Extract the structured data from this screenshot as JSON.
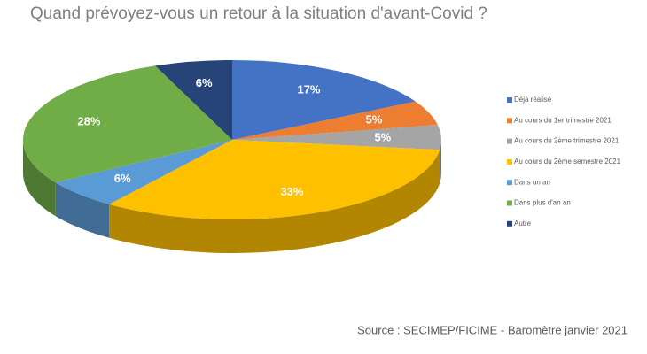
{
  "chart_data": {
    "type": "pie3d",
    "title": "Quand prévoyez-vous un retour à la situation d'avant-Covid ?",
    "source": "Source : SECIMEP/FICIME - Baromètre janvier 2021",
    "categories": [
      "Déjà réalisé",
      "Au cours du 1er trimestre 2021",
      "Au cours du 2ème trimestre 2021",
      "Au cours du 2ème semestre 2021",
      "Dans un an",
      "Dans plus d'an an",
      "Autre"
    ],
    "values": [
      17,
      5,
      5,
      33,
      6,
      28,
      6
    ],
    "value_labels": [
      "17%",
      "5%",
      "5%",
      "33%",
      "6%",
      "28%",
      "6%"
    ],
    "colors": [
      "#4472c4",
      "#ed7d31",
      "#a5a5a5",
      "#ffc000",
      "#5b9bd5",
      "#70ad47",
      "#264478"
    ],
    "legend": "right"
  }
}
